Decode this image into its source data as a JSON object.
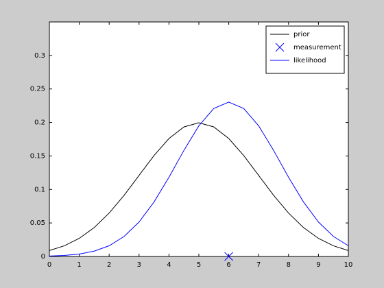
{
  "chart_data": {
    "type": "line",
    "x": [
      0,
      0.5,
      1,
      1.5,
      2,
      2.5,
      3,
      3.5,
      4,
      4.5,
      5,
      5.5,
      6,
      6.5,
      7,
      7.5,
      8,
      8.5,
      9,
      9.5,
      10
    ],
    "series": [
      {
        "name": "prior",
        "color": "#000000",
        "style": "line",
        "values": [
          0.0088,
          0.0159,
          0.027,
          0.0431,
          0.0648,
          0.0913,
          0.121,
          0.1506,
          0.176,
          0.1933,
          0.1995,
          0.1933,
          0.176,
          0.1506,
          0.121,
          0.0913,
          0.0648,
          0.0431,
          0.027,
          0.0159,
          0.0088
        ]
      },
      {
        "name": "measurement",
        "color": "#0000ff",
        "style": "marker",
        "marker": "x",
        "x": [
          6
        ],
        "values": [
          0
        ]
      },
      {
        "name": "likelihood",
        "color": "#0000ff",
        "style": "line",
        "values": [
          0.0006,
          0.0015,
          0.0036,
          0.0079,
          0.016,
          0.0299,
          0.0514,
          0.0813,
          0.1182,
          0.1583,
          0.195,
          0.2209,
          0.2303,
          0.2209,
          0.195,
          0.1583,
          0.1182,
          0.0813,
          0.0514,
          0.0299,
          0.016
        ]
      }
    ],
    "xlim": [
      0,
      10
    ],
    "xticks": [
      0,
      1,
      2,
      3,
      4,
      5,
      6,
      7,
      8,
      9,
      10
    ],
    "ylim": [
      0,
      0.35
    ],
    "yticks": [
      0,
      0.05,
      0.1,
      0.15,
      0.2,
      0.25,
      0.3
    ],
    "grid": false,
    "legend": "top-right"
  }
}
